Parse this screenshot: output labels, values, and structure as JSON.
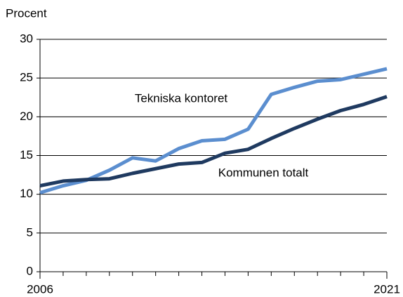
{
  "chart_data": {
    "type": "line",
    "ylabel": "Procent",
    "x": [
      2006,
      2007,
      2008,
      2009,
      2010,
      2011,
      2012,
      2013,
      2014,
      2015,
      2016,
      2017,
      2018,
      2019,
      2020,
      2021
    ],
    "xlim": [
      2006,
      2021
    ],
    "xticks": [
      2006,
      2021
    ],
    "ylim": [
      0,
      30
    ],
    "yticks": [
      0,
      5,
      10,
      15,
      20,
      25,
      30
    ],
    "grid": true,
    "series": [
      {
        "name": "Tekniska kontoret",
        "color": "#5b8ecf",
        "values": [
          10.2,
          11.1,
          11.8,
          13.1,
          14.7,
          14.3,
          15.9,
          16.9,
          17.1,
          18.4,
          22.9,
          23.8,
          24.6,
          24.8,
          25.5,
          26.2
        ]
      },
      {
        "name": "Kommunen totalt",
        "color": "#1f3a60",
        "values": [
          11.1,
          11.7,
          11.9,
          12.0,
          12.7,
          13.3,
          13.9,
          14.1,
          15.3,
          15.8,
          17.2,
          18.5,
          19.7,
          20.8,
          21.6,
          22.6
        ]
      }
    ]
  }
}
